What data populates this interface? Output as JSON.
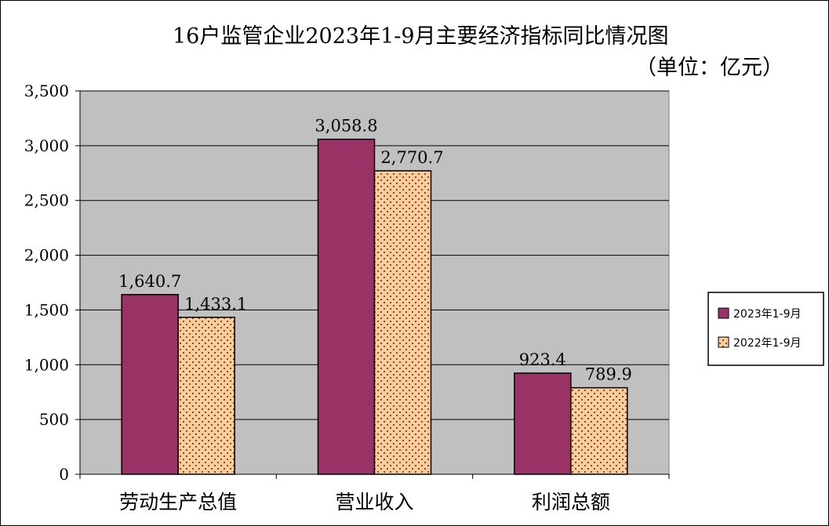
{
  "chart_data": {
    "type": "bar",
    "title": "16户监管企业2023年1-9月主要经济指标同比情况图",
    "subtitle": "（单位：亿元）",
    "categories": [
      "劳动生产总值",
      "营业收入",
      "利润总额"
    ],
    "series": [
      {
        "name": "2023年1-9月",
        "values": [
          1640.7,
          3058.8,
          923.4
        ],
        "labels": [
          "1,640.7",
          "3,058.8",
          "923.4"
        ],
        "color": "#993366"
      },
      {
        "name": "2022年1-9月",
        "values": [
          1433.1,
          2770.7,
          789.9
        ],
        "labels": [
          "1,433.1",
          "2,770.7",
          "789.9"
        ],
        "color": "#FFCC99"
      }
    ],
    "ylim": [
      0,
      3500
    ],
    "yticks": [
      0,
      500,
      1000,
      1500,
      2000,
      2500,
      3000,
      3500
    ],
    "ytick_labels": [
      "0",
      "500",
      "1,000",
      "1,500",
      "2,000",
      "2,500",
      "3,000",
      "3,500"
    ],
    "grid": true,
    "plot_background": "#C0C0C0",
    "legend_position": "right"
  }
}
